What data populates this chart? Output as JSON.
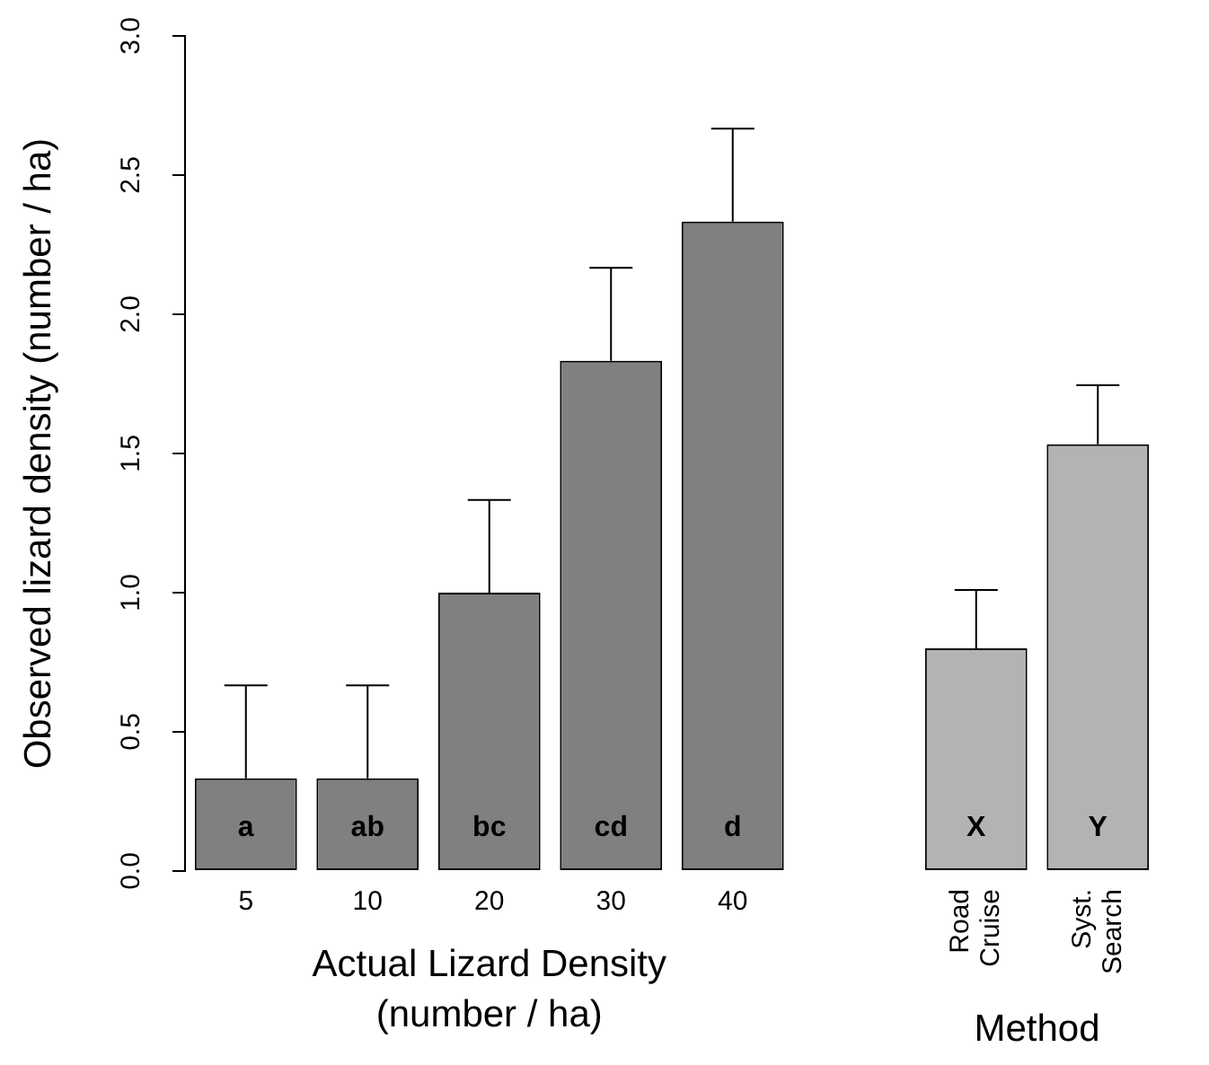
{
  "chart_data": {
    "type": "bar",
    "xlabel": "Actual Lizard Density (number / ha)",
    "ylabel": "Observed lizard density (number / ha)",
    "categories": [
      "5",
      "10",
      "20",
      "30",
      "40",
      null,
      "Road Cruise",
      "Syst. Search"
    ],
    "values": [
      0.333,
      0.333,
      1.0,
      1.833,
      2.333,
      0,
      0.8,
      1.533
    ],
    "colors": [
      "#808080",
      "#808080",
      "#808080",
      "#808080",
      "#808080",
      "#808080",
      "#b3b3b3",
      "#b3b3b3"
    ],
    "errors": [
      [
        0.333,
        0.667
      ],
      [
        0.333,
        0.667
      ],
      [
        1.0,
        1.333
      ],
      [
        1.833,
        2.167
      ],
      [
        2.333,
        2.667
      ],
      null,
      [
        0.8,
        1.01
      ],
      [
        1.533,
        1.745
      ]
    ],
    "ylim": [
      0,
      3
    ],
    "yticks": [
      {
        "value": 0,
        "label": "0.0"
      },
      {
        "value": 0.5,
        "label": "0.5"
      },
      {
        "value": 1,
        "label": "1.0"
      },
      {
        "value": 1.5,
        "label": "1.5"
      },
      {
        "value": 2,
        "label": "2.0"
      },
      {
        "value": 2.5,
        "label": "2.5"
      },
      {
        "value": 3,
        "label": "3.0"
      }
    ],
    "value_labels": [
      "a",
      "ab",
      "bc",
      "cd",
      "d",
      null,
      "X",
      "Y"
    ],
    "annotations": [
      "Method"
    ],
    "grid": false,
    "legend": false
  }
}
